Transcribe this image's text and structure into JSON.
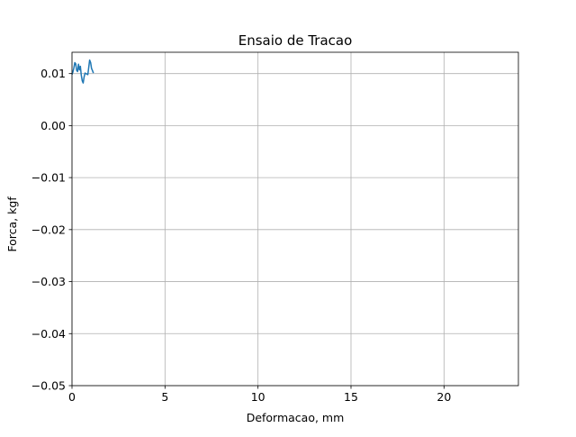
{
  "chart_data": {
    "type": "line",
    "title": "Ensaio de Tracao",
    "xlabel": "Deformacao, mm",
    "ylabel": "Forca, kgf",
    "xlim": [
      0,
      24
    ],
    "ylim": [
      -0.05,
      0.0141
    ],
    "xticks": [
      0,
      5,
      10,
      15,
      20
    ],
    "xtick_labels": [
      "0",
      "5",
      "10",
      "15",
      "20"
    ],
    "yticks": [
      0.01,
      0.0,
      -0.01,
      -0.02,
      -0.03,
      -0.04,
      -0.05
    ],
    "ytick_labels": [
      "0.01",
      "0.00",
      "−0.01",
      "−0.02",
      "−0.03",
      "−0.04",
      "−0.05"
    ],
    "grid": true,
    "series": [
      {
        "color": "#1f77b4",
        "x": [
          0.0,
          0.05,
          0.1,
          0.15,
          0.2,
          0.25,
          0.3,
          0.35,
          0.4,
          0.45,
          0.5,
          0.55,
          0.6,
          0.65,
          0.7,
          0.75,
          0.8,
          0.85,
          0.9,
          0.95,
          1.0,
          1.05,
          1.1,
          1.15
        ],
        "y": [
          0.0098,
          0.0103,
          0.0111,
          0.0121,
          0.0119,
          0.0106,
          0.0104,
          0.0118,
          0.0107,
          0.0114,
          0.0097,
          0.0086,
          0.0082,
          0.0093,
          0.0101,
          0.01,
          0.0099,
          0.0098,
          0.0112,
          0.0126,
          0.0121,
          0.011,
          0.0106,
          0.0101
        ]
      }
    ]
  }
}
